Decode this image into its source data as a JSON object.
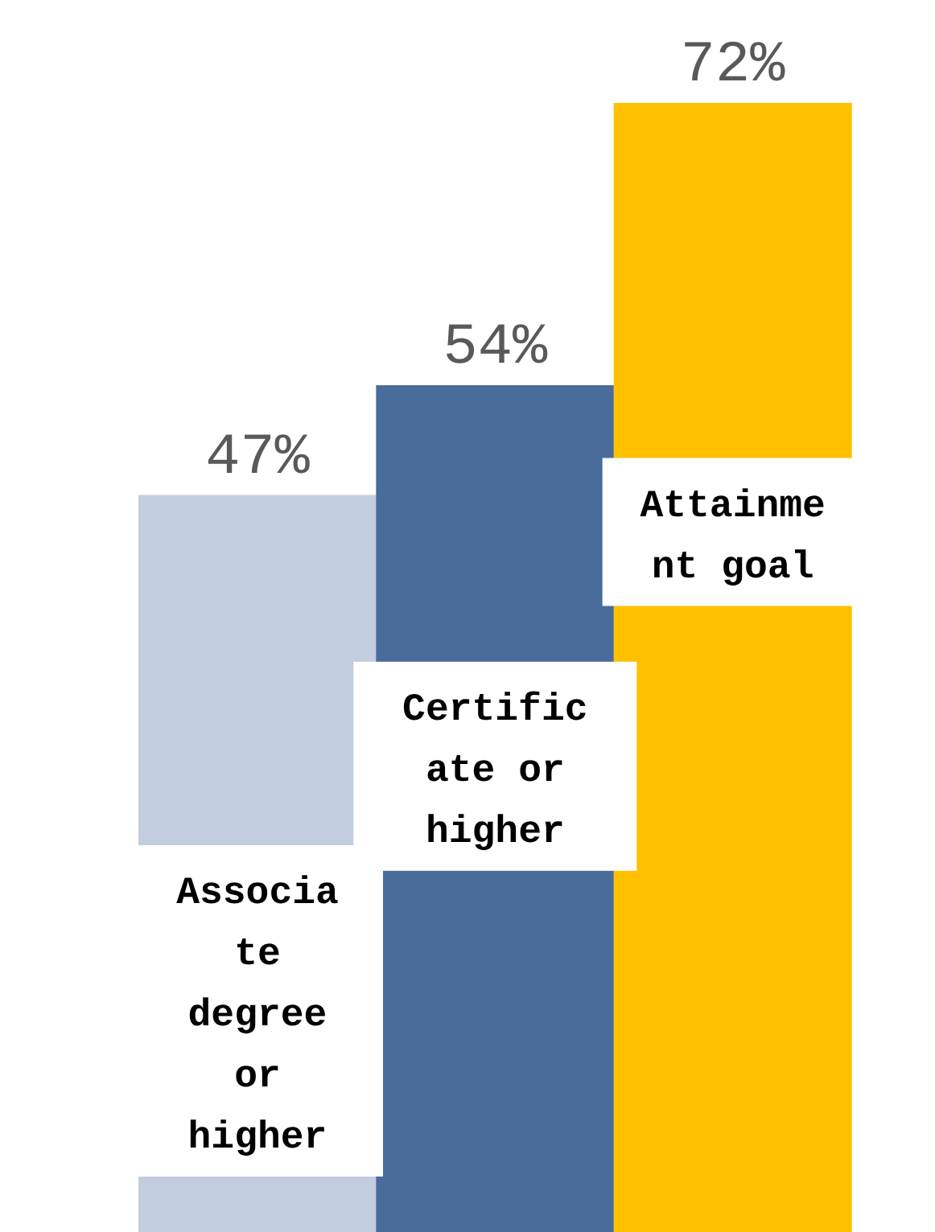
{
  "chart_data": {
    "type": "bar",
    "categories": [
      "Associate degree or higher",
      "Certificate or higher",
      "Attainment goal"
    ],
    "values": [
      47,
      54,
      72
    ],
    "colors": [
      "#c3cde0",
      "#4a6c9b",
      "#ffc000"
    ],
    "value_labels": [
      "47%",
      "54%",
      "72%"
    ],
    "grid": false,
    "legend": false,
    "tick_labels": false
  }
}
